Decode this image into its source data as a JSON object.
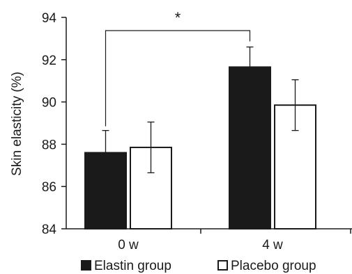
{
  "chart_data": {
    "type": "bar",
    "categories": [
      "0 w",
      "4 w"
    ],
    "ylabel": "Skin elasticity (%)",
    "ylim": [
      84,
      94
    ],
    "yticks": [
      84,
      86,
      88,
      90,
      92,
      94
    ],
    "grid": false,
    "legend_position": "bottom",
    "series": [
      {
        "name": "Elastin group",
        "values": [
          87.6,
          91.65
        ],
        "errors": [
          1.05,
          0.95
        ],
        "fill": "#1a1a1a",
        "stroke": "#1a1a1a"
      },
      {
        "name": "Placebo group",
        "values": [
          87.85,
          89.85
        ],
        "errors": [
          1.2,
          1.2
        ],
        "fill": "#ffffff",
        "stroke": "#1a1a1a"
      }
    ],
    "annotations": [
      {
        "type": "significance-bracket",
        "label": "*",
        "from_category": 0,
        "to_category": 1,
        "series": 0
      }
    ]
  }
}
